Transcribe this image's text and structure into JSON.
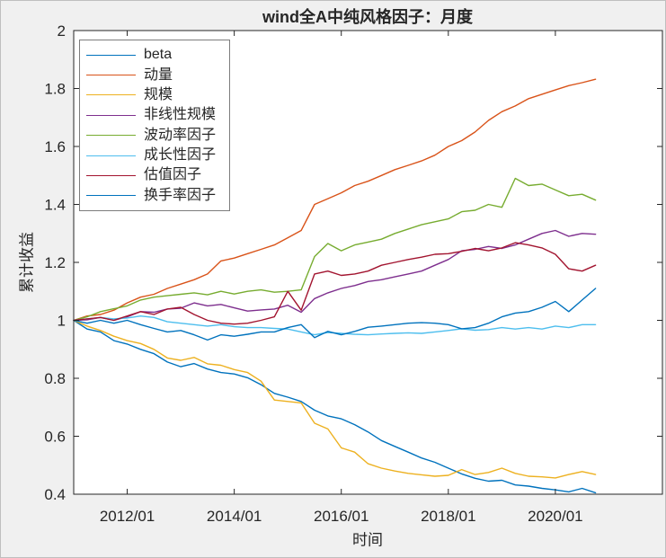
{
  "figure": {
    "background": "#f0f0f0",
    "plot_background": "#ffffff",
    "axis_color": "#262626",
    "text_color": "#262626"
  },
  "chart_data": {
    "type": "line",
    "title": "wind全A中纯风格因子：月度",
    "xlabel": "时间",
    "ylabel": "累计收益",
    "xlim": [
      2011,
      2022
    ],
    "ylim": [
      0.4,
      2.0
    ],
    "grid": false,
    "legend_position": "top-left",
    "xticks": {
      "values": [
        2012,
        2014,
        2016,
        2018,
        2020
      ],
      "labels": [
        "2012/01",
        "2014/01",
        "2016/01",
        "2018/01",
        "2020/01"
      ]
    },
    "yticks": {
      "values": [
        0.4,
        0.6,
        0.8,
        1.0,
        1.2,
        1.4,
        1.6,
        1.8,
        2.0
      ],
      "labels": [
        "0.4",
        "0.6",
        "0.8",
        "1",
        "1.2",
        "1.4",
        "1.6",
        "1.8",
        "2"
      ]
    },
    "x": [
      2011.0,
      2011.25,
      2011.5,
      2011.75,
      2012.0,
      2012.25,
      2012.5,
      2012.75,
      2013.0,
      2013.25,
      2013.5,
      2013.75,
      2014.0,
      2014.25,
      2014.5,
      2014.75,
      2015.0,
      2015.25,
      2015.5,
      2015.75,
      2016.0,
      2016.25,
      2016.5,
      2016.75,
      2017.0,
      2017.25,
      2017.5,
      2017.75,
      2018.0,
      2018.25,
      2018.5,
      2018.75,
      2019.0,
      2019.25,
      2019.5,
      2019.75,
      2020.0,
      2020.25,
      2020.5,
      2020.75
    ],
    "series": [
      {
        "id": "beta",
        "name": "beta",
        "color": "#0072BD",
        "values": [
          1.0,
          0.97,
          0.96,
          0.93,
          0.918,
          0.9,
          0.885,
          0.856,
          0.84,
          0.851,
          0.832,
          0.82,
          0.815,
          0.802,
          0.778,
          0.748,
          0.735,
          0.72,
          0.69,
          0.67,
          0.66,
          0.64,
          0.615,
          0.585,
          0.565,
          0.545,
          0.525,
          0.51,
          0.49,
          0.47,
          0.455,
          0.445,
          0.448,
          0.432,
          0.428,
          0.42,
          0.415,
          0.408,
          0.42,
          0.405
        ]
      },
      {
        "id": "momentum",
        "name": "动量",
        "color": "#D95319",
        "values": [
          1.0,
          1.015,
          1.02,
          1.035,
          1.06,
          1.08,
          1.09,
          1.11,
          1.125,
          1.14,
          1.16,
          1.205,
          1.215,
          1.23,
          1.245,
          1.26,
          1.285,
          1.31,
          1.4,
          1.42,
          1.44,
          1.465,
          1.48,
          1.5,
          1.52,
          1.535,
          1.55,
          1.57,
          1.6,
          1.62,
          1.65,
          1.69,
          1.72,
          1.74,
          1.765,
          1.78,
          1.795,
          1.81,
          1.82,
          1.832
        ]
      },
      {
        "id": "size",
        "name": "规模",
        "color": "#EDB120",
        "values": [
          1.0,
          0.98,
          0.965,
          0.945,
          0.93,
          0.92,
          0.9,
          0.87,
          0.862,
          0.872,
          0.85,
          0.845,
          0.83,
          0.82,
          0.79,
          0.725,
          0.72,
          0.715,
          0.645,
          0.625,
          0.56,
          0.545,
          0.505,
          0.49,
          0.48,
          0.472,
          0.467,
          0.462,
          0.465,
          0.485,
          0.468,
          0.475,
          0.49,
          0.472,
          0.462,
          0.46,
          0.456,
          0.468,
          0.478,
          0.468
        ]
      },
      {
        "id": "nonlinear_size",
        "name": "非线性规模",
        "color": "#7E2F8E",
        "values": [
          1.0,
          1.002,
          1.01,
          1.0,
          1.012,
          1.03,
          1.028,
          1.039,
          1.042,
          1.06,
          1.05,
          1.055,
          1.043,
          1.032,
          1.036,
          1.039,
          1.052,
          1.028,
          1.075,
          1.095,
          1.11,
          1.12,
          1.134,
          1.14,
          1.15,
          1.16,
          1.17,
          1.19,
          1.21,
          1.24,
          1.245,
          1.255,
          1.248,
          1.26,
          1.28,
          1.3,
          1.31,
          1.29,
          1.3,
          1.297
        ]
      },
      {
        "id": "volatility",
        "name": "波动率因子",
        "color": "#77AC30",
        "values": [
          1.0,
          1.012,
          1.03,
          1.04,
          1.05,
          1.07,
          1.08,
          1.085,
          1.09,
          1.095,
          1.088,
          1.1,
          1.091,
          1.1,
          1.105,
          1.097,
          1.1,
          1.105,
          1.22,
          1.265,
          1.24,
          1.26,
          1.27,
          1.28,
          1.3,
          1.315,
          1.33,
          1.34,
          1.35,
          1.375,
          1.38,
          1.4,
          1.39,
          1.49,
          1.465,
          1.47,
          1.45,
          1.43,
          1.435,
          1.415
        ]
      },
      {
        "id": "growth",
        "name": "成长性因子",
        "color": "#4DBEEE",
        "values": [
          1.0,
          1.005,
          1.01,
          1.005,
          1.008,
          1.015,
          1.01,
          0.995,
          0.99,
          0.985,
          0.98,
          0.985,
          0.978,
          0.975,
          0.975,
          0.972,
          0.97,
          0.96,
          0.95,
          0.958,
          0.955,
          0.952,
          0.95,
          0.953,
          0.955,
          0.957,
          0.955,
          0.96,
          0.965,
          0.971,
          0.966,
          0.968,
          0.975,
          0.97,
          0.975,
          0.97,
          0.98,
          0.975,
          0.985,
          0.985
        ]
      },
      {
        "id": "valuation",
        "name": "估值因子",
        "color": "#A2142F",
        "values": [
          1.0,
          1.005,
          1.01,
          1.0,
          1.015,
          1.03,
          1.02,
          1.039,
          1.045,
          1.02,
          1.0,
          0.99,
          0.987,
          0.99,
          1.0,
          1.012,
          1.1,
          1.035,
          1.16,
          1.17,
          1.155,
          1.16,
          1.17,
          1.19,
          1.2,
          1.21,
          1.218,
          1.228,
          1.23,
          1.238,
          1.248,
          1.24,
          1.25,
          1.268,
          1.26,
          1.25,
          1.228,
          1.178,
          1.17,
          1.19
        ]
      },
      {
        "id": "turnover",
        "name": "换手率因子",
        "color": "#0072BD",
        "values": [
          1.0,
          0.99,
          1.0,
          0.99,
          1.0,
          0.985,
          0.972,
          0.96,
          0.965,
          0.95,
          0.932,
          0.95,
          0.945,
          0.952,
          0.96,
          0.96,
          0.975,
          0.985,
          0.94,
          0.962,
          0.95,
          0.962,
          0.976,
          0.98,
          0.985,
          0.99,
          0.992,
          0.99,
          0.985,
          0.971,
          0.975,
          0.99,
          1.012,
          1.025,
          1.03,
          1.045,
          1.065,
          1.03,
          1.07,
          1.11
        ]
      }
    ]
  }
}
